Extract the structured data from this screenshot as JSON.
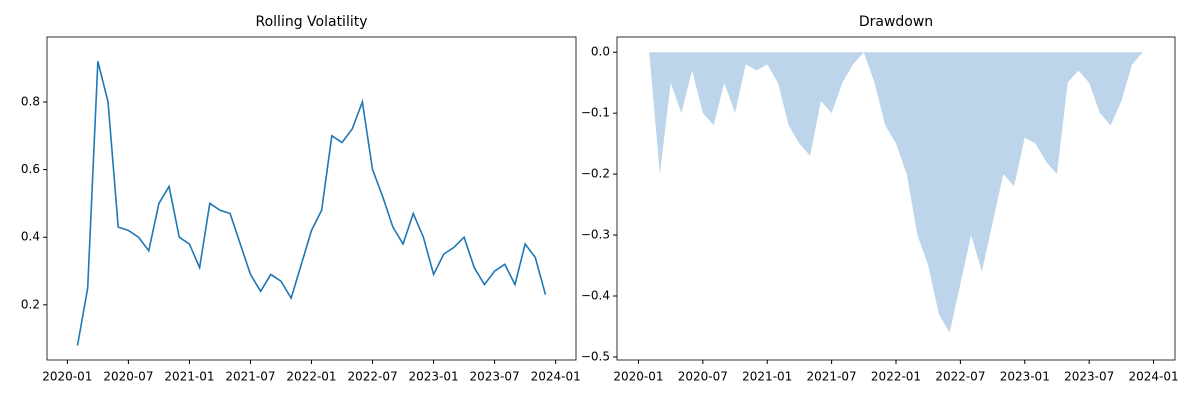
{
  "chart_data": [
    {
      "type": "line",
      "title": "Rolling Volatility",
      "color": "#1f77b4",
      "x": [
        "2020-02",
        "2020-03",
        "2020-04",
        "2020-05",
        "2020-06",
        "2020-07",
        "2020-08",
        "2020-09",
        "2020-10",
        "2020-11",
        "2020-12",
        "2021-01",
        "2021-02",
        "2021-03",
        "2021-04",
        "2021-05",
        "2021-06",
        "2021-07",
        "2021-08",
        "2021-09",
        "2021-10",
        "2021-11",
        "2021-12",
        "2022-01",
        "2022-02",
        "2022-03",
        "2022-04",
        "2022-05",
        "2022-06",
        "2022-07",
        "2022-08",
        "2022-09",
        "2022-10",
        "2022-11",
        "2022-12",
        "2023-01",
        "2023-02",
        "2023-03",
        "2023-04",
        "2023-05",
        "2023-06",
        "2023-07",
        "2023-08",
        "2023-09",
        "2023-10",
        "2023-11",
        "2023-12"
      ],
      "values": [
        0.08,
        0.25,
        0.92,
        0.8,
        0.43,
        0.42,
        0.4,
        0.36,
        0.5,
        0.55,
        0.4,
        0.38,
        0.31,
        0.5,
        0.48,
        0.47,
        0.38,
        0.29,
        0.24,
        0.29,
        0.27,
        0.22,
        0.32,
        0.42,
        0.48,
        0.7,
        0.68,
        0.72,
        0.8,
        0.6,
        0.52,
        0.43,
        0.38,
        0.47,
        0.4,
        0.29,
        0.35,
        0.37,
        0.4,
        0.31,
        0.26,
        0.3,
        0.32,
        0.26,
        0.38,
        0.34,
        0.23
      ],
      "xlim": [
        "2019-11",
        "2024-03"
      ],
      "xticks": [
        "2020-01",
        "2020-07",
        "2021-01",
        "2021-07",
        "2022-01",
        "2022-07",
        "2023-01",
        "2023-07",
        "2024-01"
      ],
      "ylim": [
        0.037,
        0.992
      ],
      "yticks": [
        {
          "value": 0.2,
          "label": "0.2"
        },
        {
          "value": 0.4,
          "label": "0.4"
        },
        {
          "value": 0.6,
          "label": "0.6"
        },
        {
          "value": 0.8,
          "label": "0.8"
        }
      ]
    },
    {
      "type": "area",
      "title": "Drawdown",
      "color": "#bcd5ea",
      "x": [
        "2020-02",
        "2020-03",
        "2020-04",
        "2020-05",
        "2020-06",
        "2020-07",
        "2020-08",
        "2020-09",
        "2020-10",
        "2020-11",
        "2020-12",
        "2021-01",
        "2021-02",
        "2021-03",
        "2021-04",
        "2021-05",
        "2021-06",
        "2021-07",
        "2021-08",
        "2021-09",
        "2021-10",
        "2021-11",
        "2021-12",
        "2022-01",
        "2022-02",
        "2022-03",
        "2022-04",
        "2022-05",
        "2022-06",
        "2022-07",
        "2022-08",
        "2022-09",
        "2022-10",
        "2022-11",
        "2022-12",
        "2023-01",
        "2023-02",
        "2023-03",
        "2023-04",
        "2023-05",
        "2023-06",
        "2023-07",
        "2023-08",
        "2023-09",
        "2023-10",
        "2023-11",
        "2023-12"
      ],
      "values": [
        0,
        -0.2,
        -0.05,
        -0.1,
        -0.03,
        -0.1,
        -0.12,
        -0.05,
        -0.1,
        -0.02,
        -0.03,
        -0.02,
        -0.05,
        -0.12,
        -0.15,
        -0.17,
        -0.08,
        -0.1,
        -0.05,
        -0.02,
        0,
        -0.05,
        -0.12,
        -0.15,
        -0.2,
        -0.3,
        -0.35,
        -0.43,
        -0.46,
        -0.38,
        -0.3,
        -0.36,
        -0.28,
        -0.2,
        -0.22,
        -0.14,
        -0.15,
        -0.18,
        -0.2,
        -0.05,
        -0.03,
        -0.05,
        -0.1,
        -0.12,
        -0.08,
        -0.02,
        0
      ],
      "xlim": [
        "2019-11",
        "2024-03"
      ],
      "xticks": [
        "2020-01",
        "2020-07",
        "2021-01",
        "2021-07",
        "2022-01",
        "2022-07",
        "2023-01",
        "2023-07",
        "2024-01"
      ],
      "ylim": [
        -0.505,
        0.025
      ],
      "yticks": [
        {
          "value": 0,
          "label": "0.0"
        },
        {
          "value": -0.1,
          "label": "−0.1"
        },
        {
          "value": -0.2,
          "label": "−0.2"
        },
        {
          "value": -0.3,
          "label": "−0.3"
        },
        {
          "value": -0.4,
          "label": "−0.4"
        },
        {
          "value": -0.5,
          "label": "−0.5"
        }
      ]
    }
  ]
}
